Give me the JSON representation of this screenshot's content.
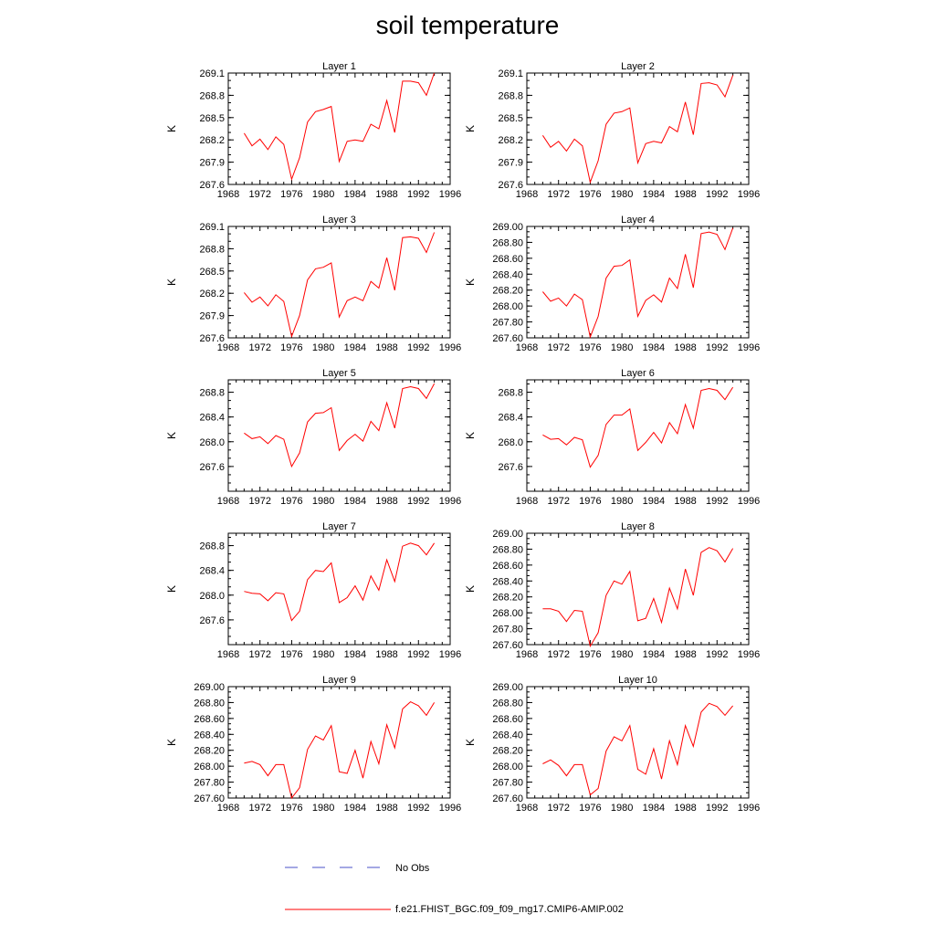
{
  "title": "soil temperature",
  "legend": {
    "items": [
      {
        "label": "No Obs",
        "color": "#4a52c8",
        "style": "dashed"
      },
      {
        "label": "f.e21.FHIST_BGC.f09_f09_mg17.CMIP6-AMIP.002",
        "color": "#ff0000",
        "style": "solid"
      }
    ]
  },
  "chart_data": [
    {
      "type": "line",
      "title": "Layer 1",
      "ylabel": "K",
      "xlim": [
        1968,
        1996
      ],
      "xticks": [
        1968,
        1972,
        1976,
        1980,
        1984,
        1988,
        1992,
        1996
      ],
      "ylim": [
        267.6,
        269.1
      ],
      "yticks": [
        267.6,
        267.9,
        268.2,
        268.5,
        268.8,
        269.1
      ],
      "ytick_labels": [
        "267.6",
        "267.9",
        "268.2",
        "268.5",
        "268.8",
        "269.1"
      ],
      "series": [
        {
          "color": "#ff0000",
          "x": [
            1970,
            1971,
            1972,
            1973,
            1974,
            1975,
            1976,
            1977,
            1978,
            1979,
            1980,
            1981,
            1982,
            1983,
            1984,
            1985,
            1986,
            1987,
            1988,
            1989,
            1990,
            1991,
            1992,
            1993,
            1994
          ],
          "y": [
            268.29,
            268.12,
            268.21,
            268.07,
            268.24,
            268.14,
            267.67,
            267.96,
            268.44,
            268.58,
            268.61,
            268.65,
            267.91,
            268.18,
            268.2,
            268.18,
            268.41,
            268.35,
            268.73,
            268.3,
            268.99,
            268.99,
            268.97,
            268.8,
            269.1
          ]
        }
      ]
    },
    {
      "type": "line",
      "title": "Layer 2",
      "ylabel": "K",
      "xlim": [
        1968,
        1996
      ],
      "xticks": [
        1968,
        1972,
        1976,
        1980,
        1984,
        1988,
        1992,
        1996
      ],
      "ylim": [
        267.6,
        269.1
      ],
      "yticks": [
        267.6,
        267.9,
        268.2,
        268.5,
        268.8,
        269.1
      ],
      "ytick_labels": [
        "267.6",
        "267.9",
        "268.2",
        "268.5",
        "268.8",
        "269.1"
      ],
      "series": [
        {
          "color": "#ff0000",
          "x": [
            1970,
            1971,
            1972,
            1973,
            1974,
            1975,
            1976,
            1977,
            1978,
            1979,
            1980,
            1981,
            1982,
            1983,
            1984,
            1985,
            1986,
            1987,
            1988,
            1989,
            1990,
            1991,
            1992,
            1993,
            1994
          ],
          "y": [
            268.26,
            268.1,
            268.18,
            268.05,
            268.21,
            268.12,
            267.63,
            267.92,
            268.41,
            268.56,
            268.58,
            268.63,
            267.89,
            268.15,
            268.18,
            268.16,
            268.38,
            268.31,
            268.71,
            268.27,
            268.96,
            268.97,
            268.94,
            268.78,
            269.07
          ]
        }
      ]
    },
    {
      "type": "line",
      "title": "Layer 3",
      "ylabel": "K",
      "xlim": [
        1968,
        1996
      ],
      "xticks": [
        1968,
        1972,
        1976,
        1980,
        1984,
        1988,
        1992,
        1996
      ],
      "ylim": [
        267.6,
        269.1
      ],
      "yticks": [
        267.6,
        267.9,
        268.2,
        268.5,
        268.8,
        269.1
      ],
      "ytick_labels": [
        "267.6",
        "267.9",
        "268.2",
        "268.5",
        "268.8",
        "269.1"
      ],
      "series": [
        {
          "color": "#ff0000",
          "x": [
            1970,
            1971,
            1972,
            1973,
            1974,
            1975,
            1976,
            1977,
            1978,
            1979,
            1980,
            1981,
            1982,
            1983,
            1984,
            1985,
            1986,
            1987,
            1988,
            1989,
            1990,
            1991,
            1992,
            1993,
            1994
          ],
          "y": [
            268.21,
            268.08,
            268.15,
            268.03,
            268.18,
            268.09,
            267.62,
            267.9,
            268.38,
            268.53,
            268.55,
            268.61,
            267.88,
            268.1,
            268.15,
            268.1,
            268.36,
            268.27,
            268.68,
            268.24,
            268.95,
            268.96,
            268.94,
            268.75,
            269.02
          ]
        }
      ]
    },
    {
      "type": "line",
      "title": "Layer 4",
      "ylabel": "K",
      "xlim": [
        1968,
        1996
      ],
      "xticks": [
        1968,
        1972,
        1976,
        1980,
        1984,
        1988,
        1992,
        1996
      ],
      "ylim": [
        267.6,
        269.0
      ],
      "yticks": [
        267.6,
        267.8,
        268.0,
        268.2,
        268.4,
        268.6,
        268.8,
        269.0
      ],
      "ytick_labels": [
        "267.60",
        "267.80",
        "268.00",
        "268.20",
        "268.40",
        "268.60",
        "268.80",
        "269.00"
      ],
      "series": [
        {
          "color": "#ff0000",
          "x": [
            1970,
            1971,
            1972,
            1973,
            1974,
            1975,
            1976,
            1977,
            1978,
            1979,
            1980,
            1981,
            1982,
            1983,
            1984,
            1985,
            1986,
            1987,
            1988,
            1989,
            1990,
            1991,
            1992,
            1993,
            1994
          ],
          "y": [
            268.18,
            268.06,
            268.1,
            268.0,
            268.15,
            268.08,
            267.61,
            267.87,
            268.35,
            268.5,
            268.51,
            268.58,
            267.87,
            268.07,
            268.14,
            268.05,
            268.35,
            268.22,
            268.65,
            268.23,
            268.91,
            268.93,
            268.9,
            268.71,
            268.98
          ]
        }
      ]
    },
    {
      "type": "line",
      "title": "Layer 5",
      "ylabel": "K",
      "xlim": [
        1968,
        1996
      ],
      "xticks": [
        1968,
        1972,
        1976,
        1980,
        1984,
        1988,
        1992,
        1996
      ],
      "ylim": [
        267.2,
        269.0
      ],
      "yticks": [
        267.6,
        268.0,
        268.4,
        268.8
      ],
      "ytick_labels": [
        "267.6",
        "268.0",
        "268.4",
        "268.8"
      ],
      "series": [
        {
          "color": "#ff0000",
          "x": [
            1970,
            1971,
            1972,
            1973,
            1974,
            1975,
            1976,
            1977,
            1978,
            1979,
            1980,
            1981,
            1982,
            1983,
            1984,
            1985,
            1986,
            1987,
            1988,
            1989,
            1990,
            1991,
            1992,
            1993,
            1994
          ],
          "y": [
            268.14,
            268.05,
            268.08,
            267.97,
            268.1,
            268.04,
            267.6,
            267.82,
            268.32,
            268.46,
            268.47,
            268.55,
            267.86,
            268.02,
            268.12,
            268.01,
            268.33,
            268.18,
            268.63,
            268.22,
            268.86,
            268.89,
            268.86,
            268.7,
            268.94
          ]
        }
      ]
    },
    {
      "type": "line",
      "title": "Layer 6",
      "ylabel": "K",
      "xlim": [
        1968,
        1996
      ],
      "xticks": [
        1968,
        1972,
        1976,
        1980,
        1984,
        1988,
        1992,
        1996
      ],
      "ylim": [
        267.2,
        269.0
      ],
      "yticks": [
        267.6,
        268.0,
        268.4,
        268.8
      ],
      "ytick_labels": [
        "267.6",
        "268.0",
        "268.4",
        "268.8"
      ],
      "series": [
        {
          "color": "#ff0000",
          "x": [
            1970,
            1971,
            1972,
            1973,
            1974,
            1975,
            1976,
            1977,
            1978,
            1979,
            1980,
            1981,
            1982,
            1983,
            1984,
            1985,
            1986,
            1987,
            1988,
            1989,
            1990,
            1991,
            1992,
            1993,
            1994
          ],
          "y": [
            268.11,
            268.04,
            268.05,
            267.95,
            268.07,
            268.03,
            267.59,
            267.78,
            268.28,
            268.43,
            268.43,
            268.53,
            267.86,
            267.99,
            268.15,
            267.98,
            268.31,
            268.13,
            268.6,
            268.22,
            268.83,
            268.86,
            268.83,
            268.68,
            268.88
          ]
        }
      ]
    },
    {
      "type": "line",
      "title": "Layer 7",
      "ylabel": "K",
      "xlim": [
        1968,
        1996
      ],
      "xticks": [
        1968,
        1972,
        1976,
        1980,
        1984,
        1988,
        1992,
        1996
      ],
      "ylim": [
        267.2,
        269.0
      ],
      "yticks": [
        267.6,
        268.0,
        268.4,
        268.8
      ],
      "ytick_labels": [
        "267.6",
        "268.0",
        "268.4",
        "268.8"
      ],
      "series": [
        {
          "color": "#ff0000",
          "x": [
            1970,
            1971,
            1972,
            1973,
            1974,
            1975,
            1976,
            1977,
            1978,
            1979,
            1980,
            1981,
            1982,
            1983,
            1984,
            1985,
            1986,
            1987,
            1988,
            1989,
            1990,
            1991,
            1992,
            1993,
            1994
          ],
          "y": [
            268.06,
            268.03,
            268.02,
            267.91,
            268.04,
            268.02,
            267.59,
            267.74,
            268.25,
            268.4,
            268.38,
            268.52,
            267.88,
            267.96,
            268.15,
            267.92,
            268.31,
            268.08,
            268.57,
            268.22,
            268.79,
            268.84,
            268.8,
            268.65,
            268.84
          ]
        }
      ]
    },
    {
      "type": "line",
      "title": "Layer 8",
      "ylabel": "K",
      "xlim": [
        1968,
        1996
      ],
      "xticks": [
        1968,
        1972,
        1976,
        1980,
        1984,
        1988,
        1992,
        1996
      ],
      "ylim": [
        267.6,
        269.0
      ],
      "yticks": [
        267.6,
        267.8,
        268.0,
        268.2,
        268.4,
        268.6,
        268.8,
        269.0
      ],
      "ytick_labels": [
        "267.60",
        "267.80",
        "268.00",
        "268.20",
        "268.40",
        "268.60",
        "268.80",
        "269.00"
      ],
      "series": [
        {
          "color": "#ff0000",
          "x": [
            1970,
            1971,
            1972,
            1973,
            1974,
            1975,
            1976,
            1977,
            1978,
            1979,
            1980,
            1981,
            1982,
            1983,
            1984,
            1985,
            1986,
            1987,
            1988,
            1989,
            1990,
            1991,
            1992,
            1993,
            1994
          ],
          "y": [
            268.05,
            268.05,
            268.02,
            267.89,
            268.03,
            268.02,
            267.58,
            267.75,
            268.22,
            268.4,
            268.36,
            268.52,
            267.9,
            267.93,
            268.18,
            267.88,
            268.31,
            268.05,
            268.55,
            268.22,
            268.76,
            268.82,
            268.78,
            268.64,
            268.81
          ]
        }
      ]
    },
    {
      "type": "line",
      "title": "Layer 9",
      "ylabel": "K",
      "xlim": [
        1968,
        1996
      ],
      "xticks": [
        1968,
        1972,
        1976,
        1980,
        1984,
        1988,
        1992,
        1996
      ],
      "ylim": [
        267.6,
        269.0
      ],
      "yticks": [
        267.6,
        267.8,
        268.0,
        268.2,
        268.4,
        268.6,
        268.8,
        269.0
      ],
      "ytick_labels": [
        "267.60",
        "267.80",
        "268.00",
        "268.20",
        "268.40",
        "268.60",
        "268.80",
        "269.00"
      ],
      "series": [
        {
          "color": "#ff0000",
          "x": [
            1970,
            1971,
            1972,
            1973,
            1974,
            1975,
            1976,
            1977,
            1978,
            1979,
            1980,
            1981,
            1982,
            1983,
            1984,
            1985,
            1986,
            1987,
            1988,
            1989,
            1990,
            1991,
            1992,
            1993,
            1994
          ],
          "y": [
            268.04,
            268.06,
            268.02,
            267.88,
            268.02,
            268.02,
            267.6,
            267.73,
            268.21,
            268.38,
            268.33,
            268.51,
            267.93,
            267.91,
            268.2,
            267.85,
            268.31,
            268.03,
            268.52,
            268.23,
            268.72,
            268.81,
            268.76,
            268.64,
            268.8
          ]
        }
      ]
    },
    {
      "type": "line",
      "title": "Layer 10",
      "ylabel": "K",
      "xlim": [
        1968,
        1996
      ],
      "xticks": [
        1968,
        1972,
        1976,
        1980,
        1984,
        1988,
        1992,
        1996
      ],
      "ylim": [
        267.6,
        269.0
      ],
      "yticks": [
        267.6,
        267.8,
        268.0,
        268.2,
        268.4,
        268.6,
        268.8,
        269.0
      ],
      "ytick_labels": [
        "267.60",
        "267.80",
        "268.00",
        "268.20",
        "268.40",
        "268.60",
        "268.80",
        "269.00"
      ],
      "series": [
        {
          "color": "#ff0000",
          "x": [
            1970,
            1971,
            1972,
            1973,
            1974,
            1975,
            1976,
            1977,
            1978,
            1979,
            1980,
            1981,
            1982,
            1983,
            1984,
            1985,
            1986,
            1987,
            1988,
            1989,
            1990,
            1991,
            1992,
            1993,
            1994
          ],
          "y": [
            268.03,
            268.08,
            268.01,
            267.88,
            268.02,
            268.02,
            267.64,
            267.72,
            268.19,
            268.37,
            268.32,
            268.51,
            267.96,
            267.9,
            268.22,
            267.84,
            268.32,
            268.02,
            268.51,
            268.25,
            268.68,
            268.79,
            268.75,
            268.64,
            268.76
          ]
        }
      ]
    }
  ]
}
